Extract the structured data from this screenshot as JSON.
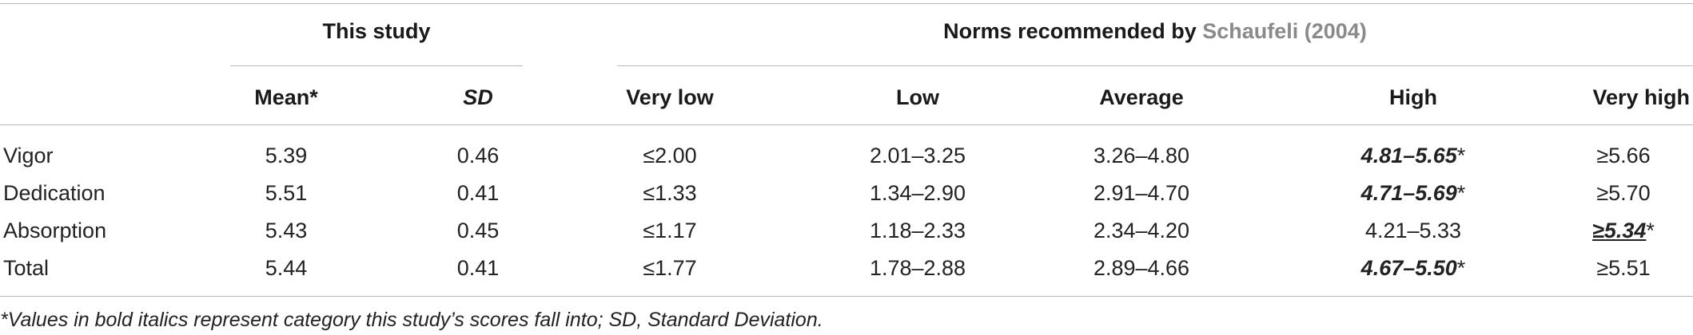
{
  "header": {
    "group_this_study": "This study",
    "group_norms_prefix": "Norms recommended by ",
    "group_norms_citation": "Schaufeli (2004)",
    "columns": [
      "Mean*",
      "SD",
      "Very low",
      "Low",
      "Average",
      "High",
      "Very high"
    ]
  },
  "rows": [
    {
      "label": "Vigor",
      "mean": "5.39",
      "sd": "0.46",
      "very_low": "≤2.00",
      "low": "2.01–3.25",
      "average": "3.26–4.80",
      "high": "4.81–5.65",
      "very_high": "≥5.66",
      "highlight": "high"
    },
    {
      "label": "Dedication",
      "mean": "5.51",
      "sd": "0.41",
      "very_low": "≤1.33",
      "low": "1.34–2.90",
      "average": "2.91–4.70",
      "high": "4.71–5.69",
      "very_high": "≥5.70",
      "highlight": "high"
    },
    {
      "label": "Absorption",
      "mean": "5.43",
      "sd": "0.45",
      "very_low": "≤1.17",
      "low": "1.18–2.33",
      "average": "2.34–4.20",
      "high": "4.21–5.33",
      "very_high": "≥5.34",
      "highlight": "very_high"
    },
    {
      "label": "Total",
      "mean": "5.44",
      "sd": "0.41",
      "very_low": "≤1.77",
      "low": "1.78–2.88",
      "average": "2.89–4.66",
      "high": "4.67–5.50",
      "very_high": "≥5.51",
      "highlight": "high"
    }
  ],
  "highlight_marker": "*",
  "footnote": "*Values in bold italics represent category this study’s scores fall into; SD, Standard Deviation."
}
